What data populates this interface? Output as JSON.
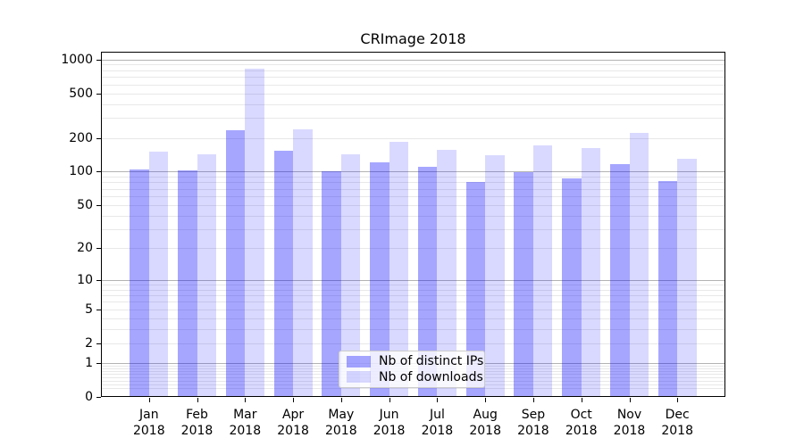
{
  "chart_data": {
    "type": "bar",
    "title": "CRImage 2018",
    "months": [
      "Jan",
      "Feb",
      "Mar",
      "Apr",
      "May",
      "Jun",
      "Jul",
      "Aug",
      "Sep",
      "Oct",
      "Nov",
      "Dec"
    ],
    "year": "2018",
    "series": [
      {
        "name": "Nb of distinct IPs",
        "color": "rgba(0,0,255,0.35)",
        "values": [
          105,
          102,
          233,
          153,
          100,
          121,
          110,
          80,
          99,
          87,
          116,
          82
        ]
      },
      {
        "name": "Nb of downloads",
        "color": "rgba(0,0,255,0.15)",
        "values": [
          150,
          143,
          820,
          237,
          142,
          185,
          156,
          139,
          171,
          162,
          223,
          131
        ]
      }
    ],
    "xlabel": "",
    "ylabel": "",
    "yscale": "log1p",
    "ylim": [
      0,
      1170
    ],
    "y_tick_labels": [
      0,
      1,
      2,
      5,
      10,
      20,
      50,
      100,
      200,
      500,
      1000
    ],
    "y_major_gridlines": [
      1,
      10,
      100,
      1000
    ],
    "y_minor_gridlines": [
      0.2,
      0.3,
      0.4,
      0.5,
      0.6,
      0.7,
      0.8,
      0.9,
      2,
      3,
      4,
      5,
      6,
      7,
      8,
      9,
      20,
      30,
      40,
      50,
      60,
      70,
      80,
      90,
      200,
      300,
      400,
      500,
      600,
      700,
      800,
      900
    ],
    "grid": true,
    "legend_position": "lower center",
    "colors": {
      "major_grid": "#b3b3b3",
      "minor_grid": "#e8e8e8",
      "spine": "#000000",
      "text": "#000000"
    }
  }
}
